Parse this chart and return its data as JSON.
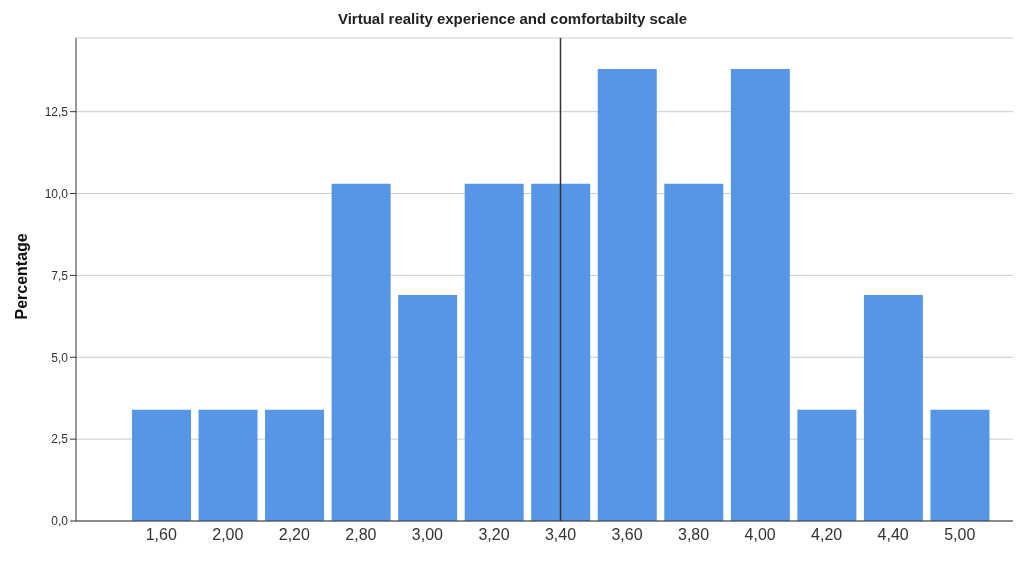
{
  "chart_data": {
    "type": "bar",
    "title": "Virtual reality experience and comfortabilty scale",
    "ylabel": "Percentage",
    "categories": [
      "1,60",
      "2,00",
      "2,20",
      "2,80",
      "3,00",
      "3,20",
      "3,40",
      "3,60",
      "3,80",
      "4,00",
      "4,20",
      "4,40",
      "5,00"
    ],
    "values": [
      3.4,
      3.4,
      3.4,
      10.3,
      6.9,
      10.3,
      10.3,
      13.8,
      10.3,
      13.8,
      3.4,
      6.9,
      3.4
    ],
    "color": "#5596e6",
    "ylim": [
      0,
      14.75
    ],
    "yticks": [
      {
        "value": 0,
        "label": "0,0"
      },
      {
        "value": 2.5,
        "label": "2,5"
      },
      {
        "value": 5,
        "label": "5,0"
      },
      {
        "value": 7.5,
        "label": "7,5"
      },
      {
        "value": 10,
        "label": "10,0"
      },
      {
        "value": 12.5,
        "label": "12,5"
      }
    ],
    "grid": "y",
    "ref_lines": [
      {
        "axis": "x",
        "value": "3,40",
        "color": "#333333"
      }
    ]
  }
}
